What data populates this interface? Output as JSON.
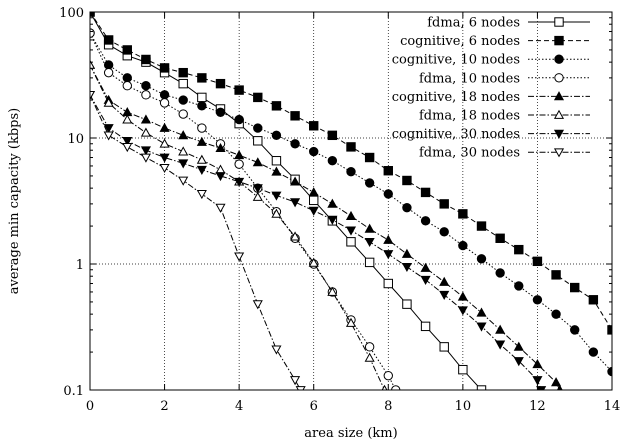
{
  "chart_data": {
    "type": "line",
    "xlabel": "area size (km)",
    "ylabel": "average min capacity (kbps)",
    "xlim": [
      0,
      14
    ],
    "ylim": [
      0.1,
      100
    ],
    "yscale": "log",
    "grid": true,
    "legend_position": "top-right",
    "x_ticks": [
      "0",
      "2",
      "4",
      "6",
      "8",
      "10",
      "12",
      "14"
    ],
    "y_ticks": [
      "0.1",
      "1",
      "10",
      "100"
    ],
    "x_tick_values": [
      0,
      2,
      4,
      6,
      8,
      10,
      12,
      14
    ],
    "y_tick_values": [
      0.1,
      1,
      10,
      100
    ],
    "series": [
      {
        "name": "fdma, 6 nodes",
        "marker": "open-square",
        "dash": "solid",
        "points": [
          [
            0,
            100
          ],
          [
            0.5,
            55
          ],
          [
            1,
            45
          ],
          [
            1.5,
            40
          ],
          [
            2,
            33
          ],
          [
            2.5,
            27
          ],
          [
            3,
            21
          ],
          [
            3.5,
            17
          ],
          [
            4,
            13
          ],
          [
            4.5,
            9.5
          ],
          [
            5,
            6.6
          ],
          [
            5.5,
            4.7
          ],
          [
            6,
            3.2
          ],
          [
            6.5,
            2.2
          ],
          [
            7,
            1.5
          ],
          [
            7.5,
            1.03
          ],
          [
            8,
            0.7
          ],
          [
            8.5,
            0.48
          ],
          [
            9,
            0.32
          ],
          [
            9.5,
            0.22
          ],
          [
            10,
            0.145
          ],
          [
            10.5,
            0.1
          ]
        ]
      },
      {
        "name": "cognitive, 6 nodes",
        "marker": "filled-square",
        "dash": "dash",
        "points": [
          [
            0,
            100
          ],
          [
            0.5,
            60
          ],
          [
            1,
            50
          ],
          [
            1.5,
            42
          ],
          [
            2,
            36
          ],
          [
            2.5,
            33
          ],
          [
            3,
            30
          ],
          [
            3.5,
            27
          ],
          [
            4,
            24
          ],
          [
            4.5,
            21
          ],
          [
            5,
            18
          ],
          [
            5.5,
            15
          ],
          [
            6,
            12.5
          ],
          [
            6.5,
            10.5
          ],
          [
            7,
            8.5
          ],
          [
            7.5,
            7
          ],
          [
            8,
            5.5
          ],
          [
            8.5,
            4.6
          ],
          [
            9,
            3.7
          ],
          [
            9.5,
            3
          ],
          [
            10,
            2.5
          ],
          [
            10.5,
            2
          ],
          [
            11,
            1.6
          ],
          [
            11.5,
            1.3
          ],
          [
            12,
            1.05
          ],
          [
            12.5,
            0.82
          ],
          [
            13,
            0.65
          ],
          [
            13.5,
            0.52
          ],
          [
            14,
            0.3
          ]
        ]
      },
      {
        "name": "cognitive, 10 nodes",
        "marker": "filled-circle",
        "dash": "dot",
        "points": [
          [
            0,
            68
          ],
          [
            0.5,
            38
          ],
          [
            1,
            30
          ],
          [
            1.5,
            26
          ],
          [
            2,
            22
          ],
          [
            2.5,
            20
          ],
          [
            3,
            18
          ],
          [
            3.5,
            16
          ],
          [
            4,
            14
          ],
          [
            4.5,
            12
          ],
          [
            5,
            10.5
          ],
          [
            5.5,
            9
          ],
          [
            6,
            7.8
          ],
          [
            6.5,
            6.6
          ],
          [
            7,
            5.4
          ],
          [
            7.5,
            4.4
          ],
          [
            8,
            3.6
          ],
          [
            8.5,
            2.8
          ],
          [
            9,
            2.2
          ],
          [
            9.5,
            1.8
          ],
          [
            10,
            1.4
          ],
          [
            10.5,
            1.1
          ],
          [
            11,
            0.85
          ],
          [
            11.5,
            0.67
          ],
          [
            12,
            0.52
          ],
          [
            12.5,
            0.4
          ],
          [
            13,
            0.3
          ],
          [
            13.5,
            0.2
          ],
          [
            14,
            0.14
          ],
          [
            14.5,
            0.1
          ]
        ]
      },
      {
        "name": "fdma, 10 nodes",
        "marker": "open-circle",
        "dash": "dot",
        "points": [
          [
            0,
            68
          ],
          [
            0.5,
            33
          ],
          [
            1,
            26
          ],
          [
            1.5,
            22
          ],
          [
            2,
            19
          ],
          [
            2.5,
            15.5
          ],
          [
            3,
            12
          ],
          [
            3.5,
            9
          ],
          [
            4,
            6.2
          ],
          [
            4.5,
            4
          ],
          [
            5,
            2.6
          ],
          [
            5.5,
            1.6
          ],
          [
            6,
            1
          ],
          [
            6.5,
            0.6
          ],
          [
            7,
            0.36
          ],
          [
            7.5,
            0.22
          ],
          [
            8,
            0.13
          ],
          [
            8.2,
            0.1
          ]
        ]
      },
      {
        "name": "cognitive, 18 nodes",
        "marker": "filled-triangle",
        "dash": "dashdot",
        "points": [
          [
            0,
            38
          ],
          [
            0.5,
            20
          ],
          [
            1,
            16
          ],
          [
            1.5,
            14
          ],
          [
            2,
            12
          ],
          [
            2.5,
            10.5
          ],
          [
            3,
            9.3
          ],
          [
            3.5,
            8.3
          ],
          [
            4,
            7.3
          ],
          [
            4.5,
            6.4
          ],
          [
            5,
            5.4
          ],
          [
            5.5,
            4.5
          ],
          [
            6,
            3.7
          ],
          [
            6.5,
            3
          ],
          [
            7,
            2.4
          ],
          [
            7.5,
            1.9
          ],
          [
            8,
            1.55
          ],
          [
            8.5,
            1.2
          ],
          [
            9,
            0.93
          ],
          [
            9.5,
            0.72
          ],
          [
            10,
            0.55
          ],
          [
            10.5,
            0.41
          ],
          [
            11,
            0.3
          ],
          [
            11.5,
            0.22
          ],
          [
            12,
            0.16
          ],
          [
            12.5,
            0.115
          ],
          [
            12.6,
            0.1
          ]
        ]
      },
      {
        "name": "fdma, 18 nodes",
        "marker": "open-triangle",
        "dash": "dashdot",
        "points": [
          [
            0,
            38
          ],
          [
            0.5,
            19
          ],
          [
            1,
            14
          ],
          [
            1.5,
            11
          ],
          [
            2,
            9
          ],
          [
            2.5,
            7.8
          ],
          [
            3,
            6.7
          ],
          [
            3.5,
            5.6
          ],
          [
            4,
            4.5
          ],
          [
            4.5,
            3.4
          ],
          [
            5,
            2.5
          ],
          [
            5.5,
            1.65
          ],
          [
            6,
            1.02
          ],
          [
            6.5,
            0.6
          ],
          [
            7,
            0.34
          ],
          [
            7.5,
            0.18
          ],
          [
            7.9,
            0.1
          ]
        ]
      },
      {
        "name": "cognitive, 30 nodes",
        "marker": "filled-inverted-triangle",
        "dash": "dashdot",
        "points": [
          [
            0,
            22
          ],
          [
            0.5,
            12
          ],
          [
            1,
            9.5
          ],
          [
            1.5,
            8
          ],
          [
            2,
            7
          ],
          [
            2.5,
            6.3
          ],
          [
            3,
            5.6
          ],
          [
            3.5,
            5
          ],
          [
            4,
            4.5
          ],
          [
            4.5,
            4
          ],
          [
            5,
            3.5
          ],
          [
            5.5,
            3.1
          ],
          [
            6,
            2.65
          ],
          [
            6.5,
            2.25
          ],
          [
            7,
            1.85
          ],
          [
            7.5,
            1.5
          ],
          [
            8,
            1.2
          ],
          [
            8.5,
            0.95
          ],
          [
            9,
            0.75
          ],
          [
            9.5,
            0.57
          ],
          [
            10,
            0.43
          ],
          [
            10.5,
            0.32
          ],
          [
            11,
            0.23
          ],
          [
            11.5,
            0.17
          ],
          [
            12,
            0.12
          ],
          [
            12.1,
            0.1
          ]
        ]
      },
      {
        "name": "fdma, 30 nodes",
        "marker": "open-inverted-triangle",
        "dash": "dashdot",
        "points": [
          [
            0,
            22
          ],
          [
            0.5,
            10.5
          ],
          [
            1,
            8.5
          ],
          [
            1.5,
            7
          ],
          [
            2,
            5.8
          ],
          [
            2.5,
            4.6
          ],
          [
            3,
            3.6
          ],
          [
            3.5,
            2.8
          ],
          [
            4,
            1.15
          ],
          [
            4.5,
            0.48
          ],
          [
            5,
            0.21
          ],
          [
            5.5,
            0.12
          ],
          [
            5.65,
            0.1
          ]
        ]
      }
    ]
  }
}
